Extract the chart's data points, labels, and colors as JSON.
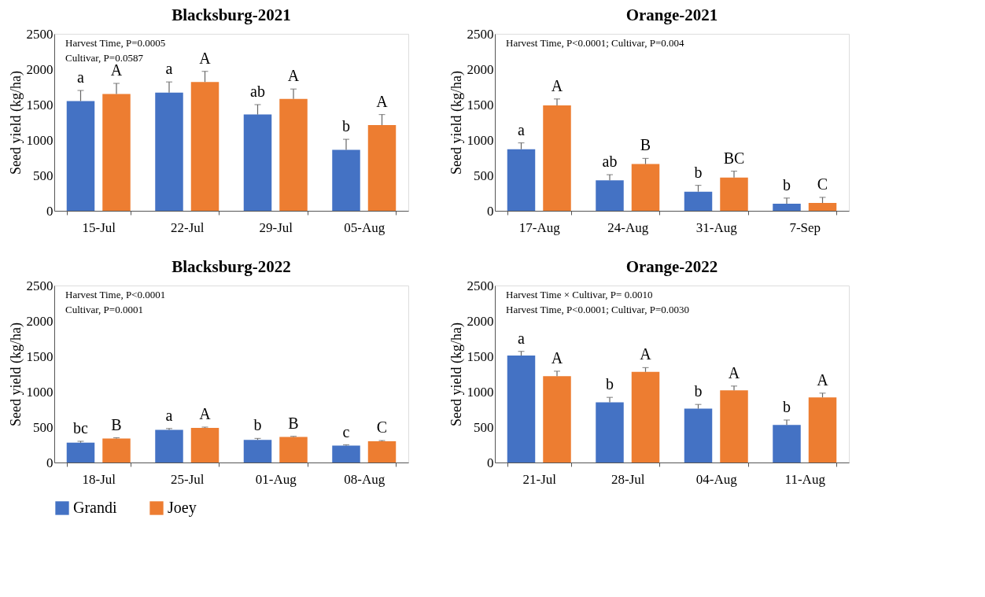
{
  "chart_data": [
    {
      "type": "bar",
      "title": "Blacksburg-2021",
      "ylabel": "Seed yield (kg/ha)",
      "categories": [
        "15-Jul",
        "22-Jul",
        "29-Jul",
        "05-Aug"
      ],
      "ylim": [
        0,
        2500
      ],
      "yticks": [
        0,
        500,
        1000,
        1500,
        2000,
        2500
      ],
      "grid": false,
      "legend": "bottom",
      "annotations": [
        "Harvest Time, P=0.0005",
        "Cultivar, P=0.0587"
      ],
      "series": [
        {
          "name": "Grandi",
          "color": "#4472c4",
          "values": [
            1550,
            1670,
            1360,
            860
          ],
          "errors": [
            [
              1550,
              1700
            ],
            [
              1670,
              1820
            ],
            [
              1360,
              1500
            ],
            [
              860,
              1010
            ]
          ],
          "value_labels": [
            "a",
            "a",
            "ab",
            "b"
          ]
        },
        {
          "name": "Joey",
          "color": "#ed7d31",
          "values": [
            1650,
            1820,
            1580,
            1210
          ],
          "errors": [
            [
              1650,
              1800
            ],
            [
              1820,
              1970
            ],
            [
              1580,
              1720
            ],
            [
              1210,
              1360
            ]
          ],
          "value_labels": [
            "A",
            "A",
            "A",
            "A"
          ]
        }
      ]
    },
    {
      "type": "bar",
      "title": "Orange-2021",
      "ylabel": "Seed yield (kg/ha)",
      "categories": [
        "17-Aug",
        "24-Aug",
        "31-Aug",
        "7-Sep"
      ],
      "ylim": [
        0,
        2500
      ],
      "yticks": [
        0,
        500,
        1000,
        1500,
        2000,
        2500
      ],
      "grid": false,
      "legend": "bottom",
      "annotations": [
        "Harvest Time, P<0.0001;  Cultivar, P=0.004"
      ],
      "series": [
        {
          "name": "Grandi",
          "color": "#4472c4",
          "values": [
            870,
            430,
            270,
            100
          ],
          "errors": [
            [
              870,
              960
            ],
            [
              430,
              510
            ],
            [
              270,
              360
            ],
            [
              100,
              180
            ]
          ],
          "value_labels": [
            "a",
            "ab",
            "b",
            "b"
          ]
        },
        {
          "name": "Joey",
          "color": "#ed7d31",
          "values": [
            1490,
            660,
            470,
            110
          ],
          "errors": [
            [
              1490,
              1580
            ],
            [
              660,
              740
            ],
            [
              470,
              560
            ],
            [
              110,
              190
            ]
          ],
          "value_labels": [
            "A",
            "B",
            "BC",
            "C"
          ]
        }
      ]
    },
    {
      "type": "bar",
      "title": "Blacksburg-2022",
      "ylabel": "Seed yield (kg/ha)",
      "categories": [
        "18-Jul",
        "25-Jul",
        "01-Aug",
        "08-Aug"
      ],
      "ylim": [
        0,
        2500
      ],
      "yticks": [
        0,
        500,
        1000,
        1500,
        2000,
        2500
      ],
      "grid": false,
      "legend": "bottom",
      "annotations": [
        "Harvest Time, P<0.0001",
        "Cultivar, P=0.0001"
      ],
      "series": [
        {
          "name": "Grandi",
          "color": "#4472c4",
          "values": [
            280,
            460,
            320,
            240
          ],
          "errors": [
            [
              280,
              300
            ],
            [
              460,
              480
            ],
            [
              320,
              340
            ],
            [
              240,
              250
            ]
          ],
          "value_labels": [
            "bc",
            "a",
            "b",
            "c"
          ]
        },
        {
          "name": "Joey",
          "color": "#ed7d31",
          "values": [
            340,
            490,
            360,
            300
          ],
          "errors": [
            [
              340,
              350
            ],
            [
              490,
              500
            ],
            [
              360,
              370
            ],
            [
              300,
              310
            ]
          ],
          "value_labels": [
            "B",
            "A",
            "B",
            "C"
          ]
        }
      ]
    },
    {
      "type": "bar",
      "title": "Orange-2022",
      "ylabel": "Seed yield (kg/ha)",
      "categories": [
        "21-Jul",
        "28-Jul",
        "04-Aug",
        "11-Aug"
      ],
      "ylim": [
        0,
        2500
      ],
      "yticks": [
        0,
        500,
        1000,
        1500,
        2000,
        2500
      ],
      "grid": false,
      "legend": "bottom",
      "annotations": [
        "Harvest Time × Cultivar, P= 0.0010",
        "Harvest Time, P<0.0001;  Cultivar, P=0.0030"
      ],
      "series": [
        {
          "name": "Grandi",
          "color": "#4472c4",
          "values": [
            1510,
            850,
            760,
            530
          ],
          "errors": [
            [
              1510,
              1570
            ],
            [
              850,
              920
            ],
            [
              760,
              820
            ],
            [
              530,
              600
            ]
          ],
          "value_labels": [
            "a",
            "b",
            "b",
            "b"
          ]
        },
        {
          "name": "Joey",
          "color": "#ed7d31",
          "values": [
            1220,
            1280,
            1020,
            920
          ],
          "errors": [
            [
              1220,
              1290
            ],
            [
              1280,
              1340
            ],
            [
              1020,
              1080
            ],
            [
              920,
              980
            ]
          ],
          "value_labels": [
            "A",
            "A",
            "A",
            "A"
          ]
        }
      ]
    }
  ]
}
